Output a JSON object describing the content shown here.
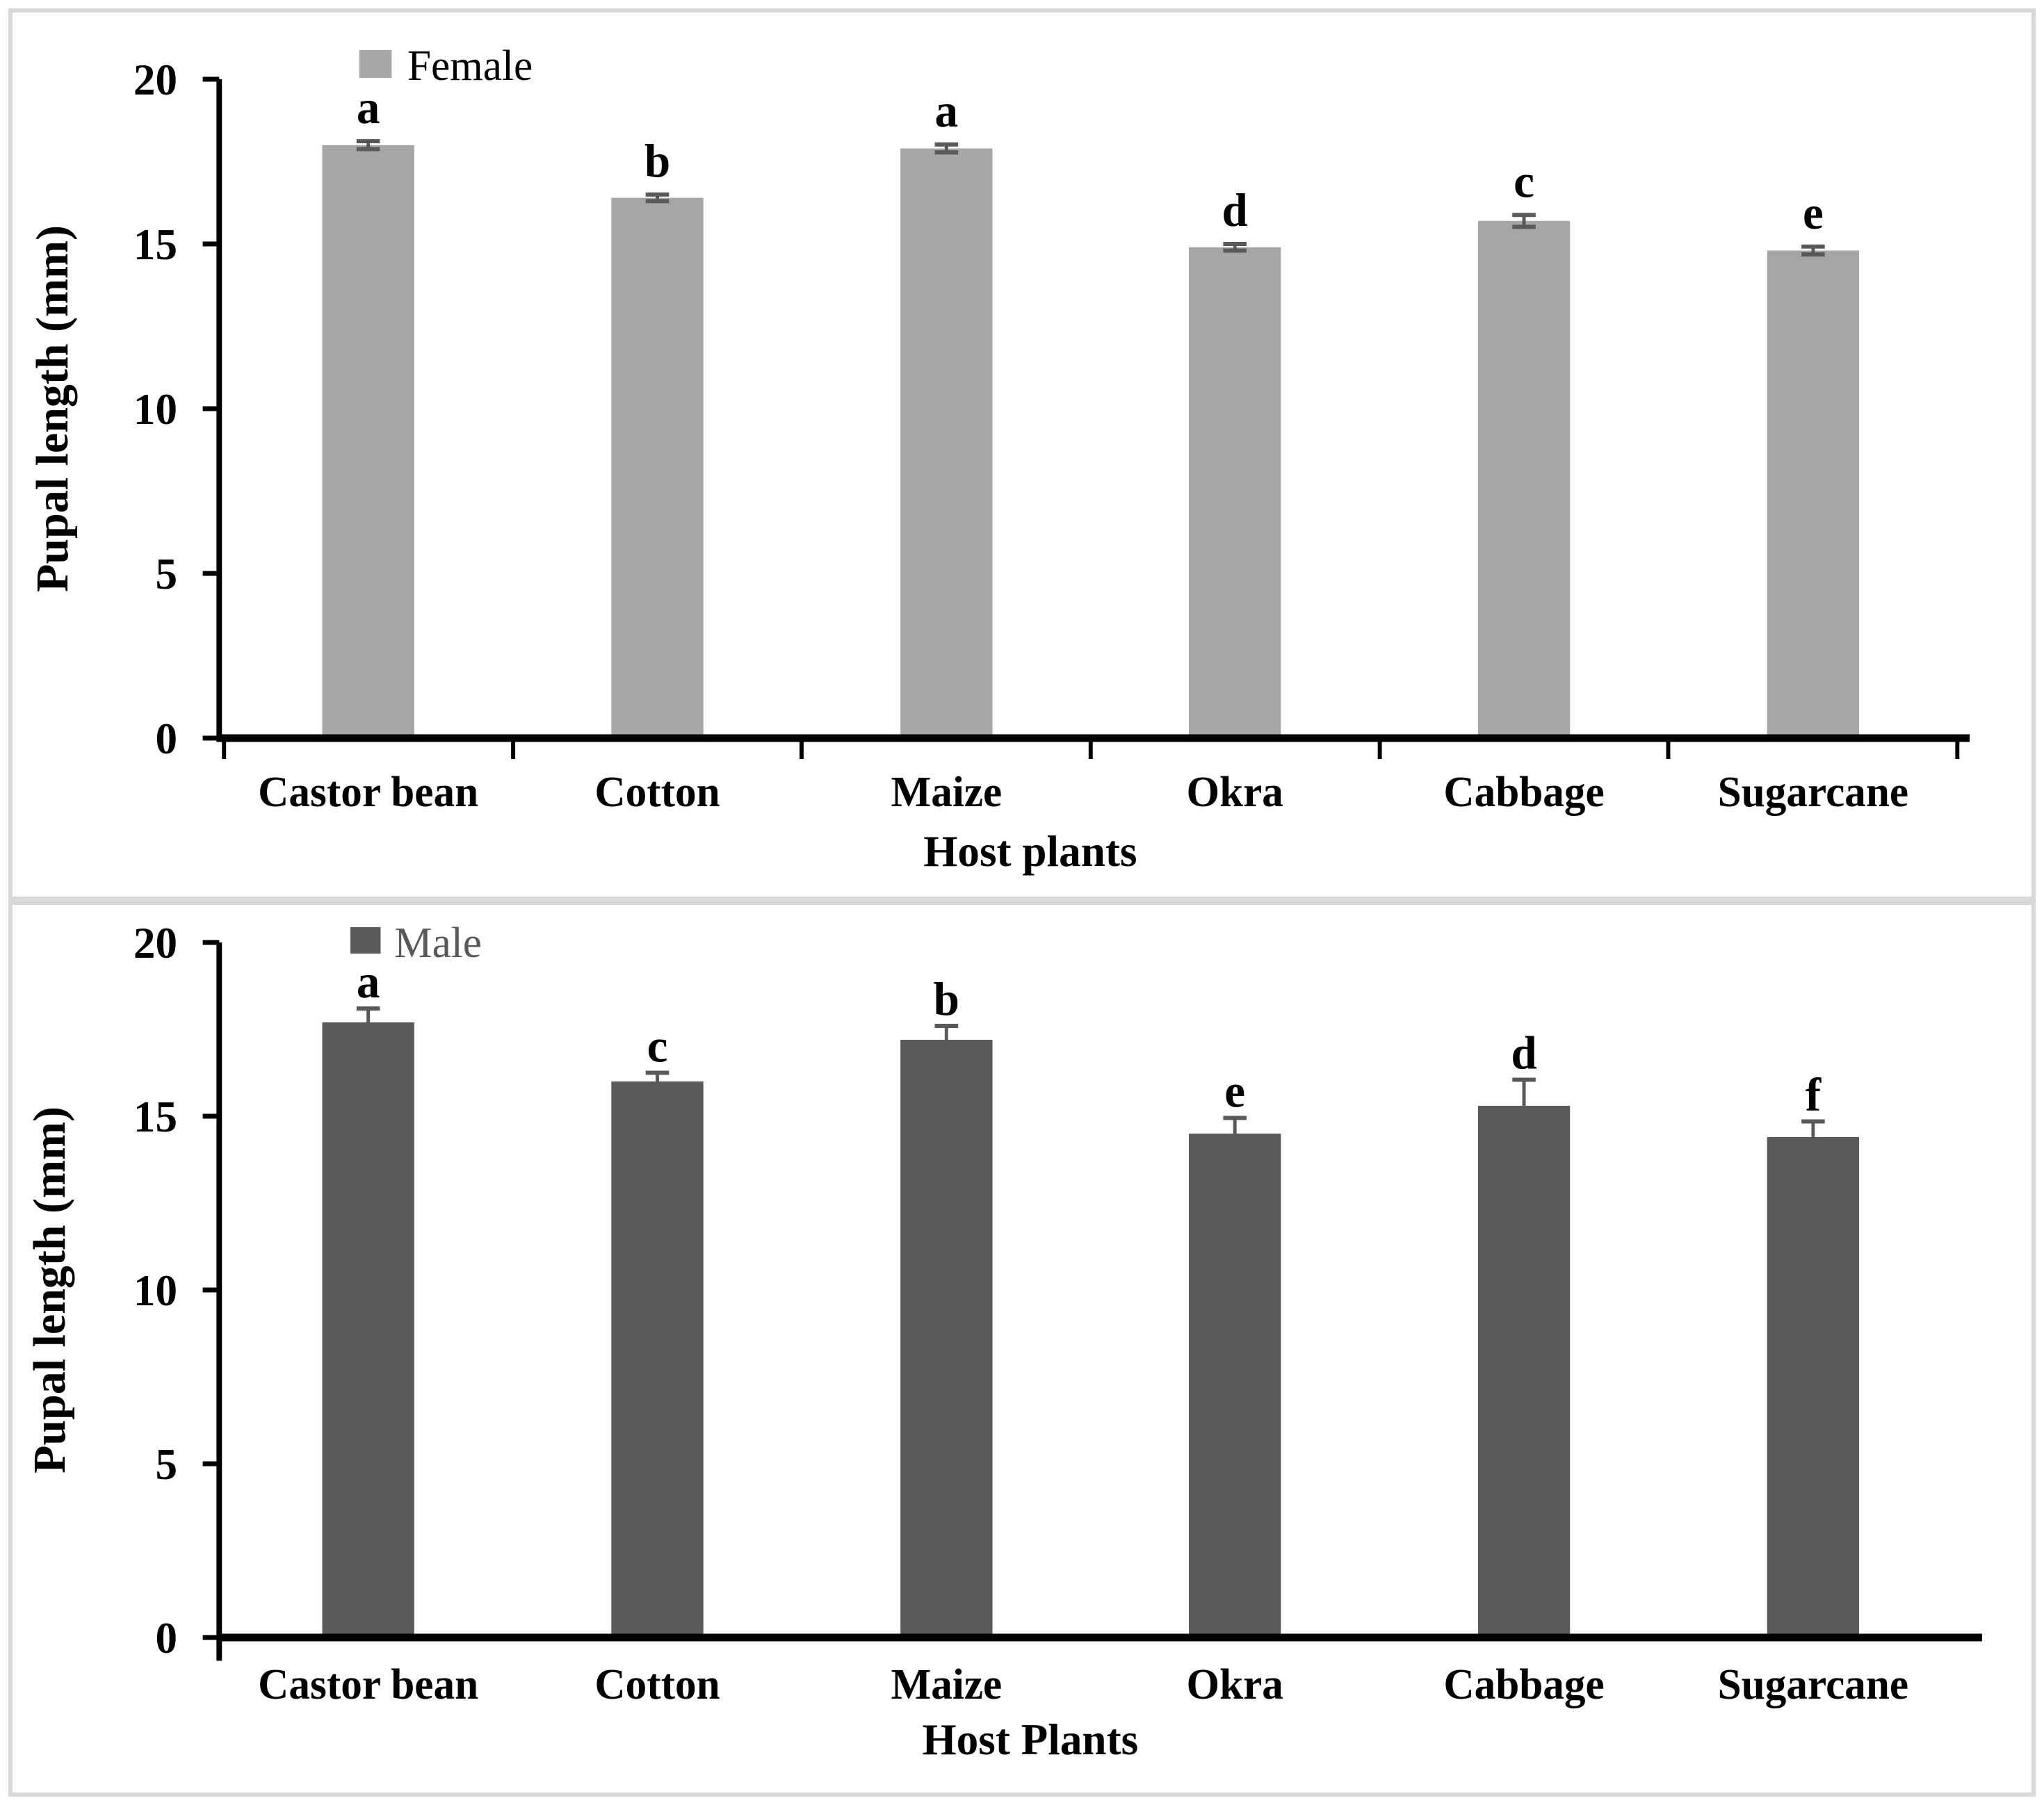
{
  "figure": {
    "frame_color": "#d9d9d9",
    "background": "#ffffff"
  },
  "chart_data": [
    {
      "type": "bar",
      "title": "",
      "legend": {
        "label": "Female",
        "position": "top-left-inside"
      },
      "xlabel": "Host plants",
      "ylabel": "Pupal length (mm)",
      "ylim": [
        0,
        20
      ],
      "yticks": [
        "0",
        "5",
        "10",
        "15",
        "20"
      ],
      "grid": false,
      "categories": [
        "Castor bean",
        "Cotton",
        "Maize",
        "Okra",
        "Cabbage",
        "Sugarcane"
      ],
      "values": [
        18.0,
        16.4,
        17.9,
        14.9,
        15.7,
        14.8
      ],
      "errors": [
        0.12,
        0.1,
        0.12,
        0.1,
        0.18,
        0.12
      ],
      "sig_letters": [
        "a",
        "b",
        "a",
        "d",
        "c",
        "e"
      ],
      "bar_color": "#a6a6a6",
      "error_color": "#595959",
      "axis_color": "#000000",
      "legend_text_color": "#000000",
      "letter_color": "#000000"
    },
    {
      "type": "bar",
      "title": "",
      "legend": {
        "label": "Male",
        "position": "top-left-inside"
      },
      "xlabel": "Host Plants",
      "ylabel": "Pupal length (mm)",
      "ylim": [
        0,
        20
      ],
      "yticks": [
        "0",
        "5",
        "10",
        "15",
        "20"
      ],
      "grid": false,
      "categories": [
        "Castor bean",
        "Cotton",
        "Maize",
        "Okra",
        "Cabbage",
        "Sugarcane"
      ],
      "values": [
        17.7,
        16.0,
        17.2,
        14.5,
        15.3,
        14.4
      ],
      "errors": [
        0.4,
        0.25,
        0.4,
        0.45,
        0.75,
        0.45
      ],
      "sig_letters": [
        "a",
        "c",
        "b",
        "e",
        "d",
        "f"
      ],
      "bar_color": "#595959",
      "error_color": "#595959",
      "axis_color": "#000000",
      "legend_text_color": "#595959",
      "letter_color": "#000000"
    }
  ]
}
